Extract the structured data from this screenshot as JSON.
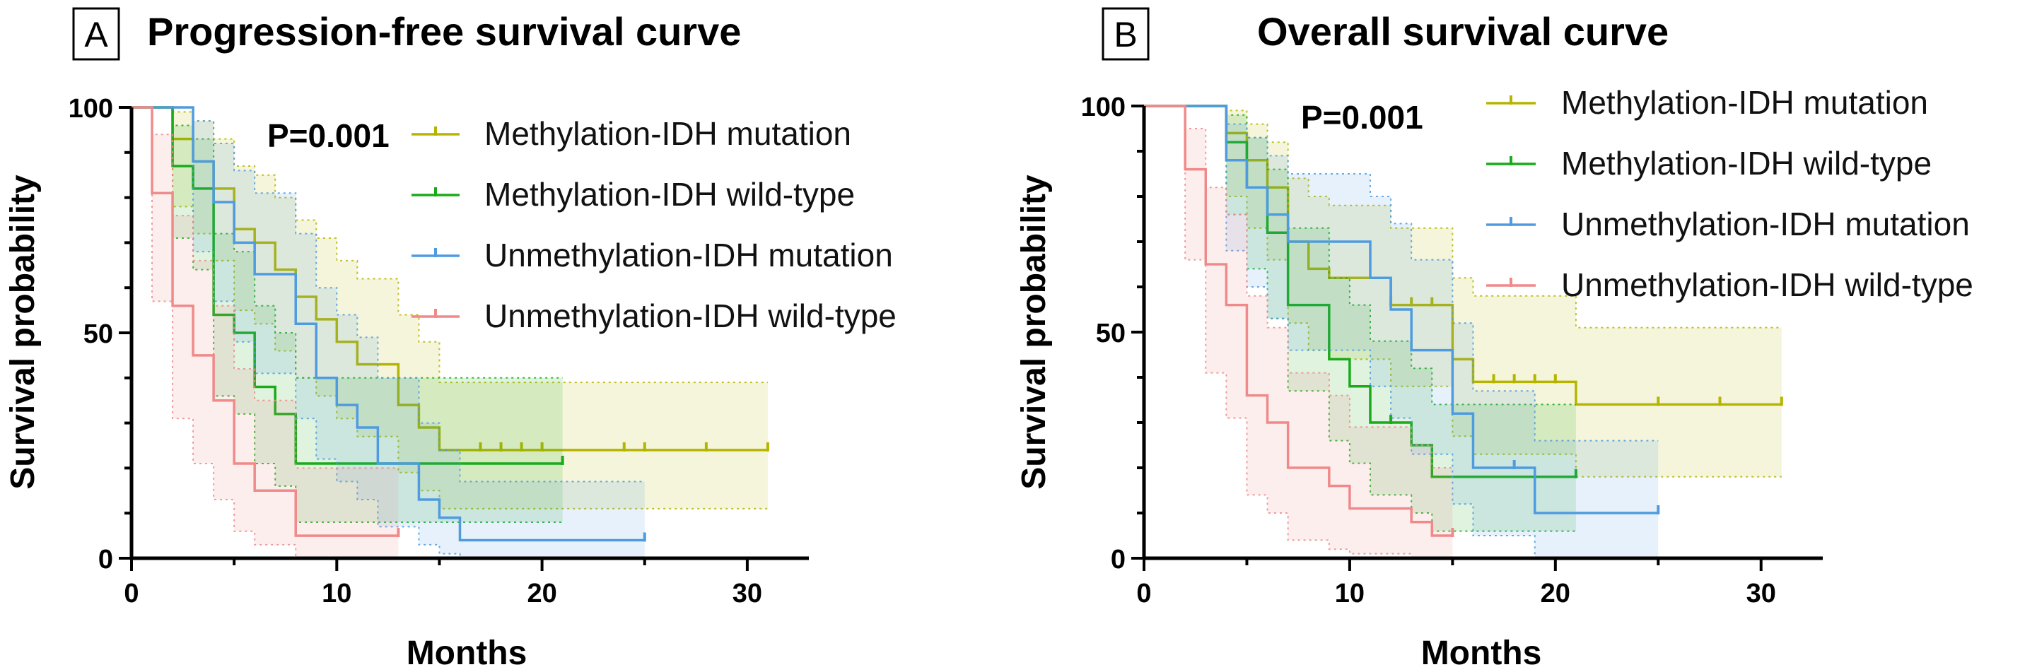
{
  "colors": {
    "Methylation-IDH mutation": "#b5b500",
    "Methylation-IDH wild-type": "#1aaa1a",
    "Unmethylation-IDH mutation": "#4f9be0",
    "Unmethylation-IDH wild-type": "#f08a8a"
  },
  "chart_data": [
    {
      "type": "line",
      "subtype": "kaplan-meier step",
      "panel_label": "A",
      "title": "Progression-free survival curve",
      "annotation": "P=0.001",
      "xlabel": "Months",
      "ylabel": "Survival probability",
      "xlim": [
        0,
        33
      ],
      "ylim": [
        0,
        100
      ],
      "xticks": [
        0,
        10,
        20,
        30
      ],
      "yticks": [
        0,
        50,
        100
      ],
      "grid": false,
      "legend_position": "top-right",
      "series": [
        {
          "name": "Methylation-IDH mutation",
          "x": [
            0,
            2,
            3,
            4,
            5,
            6,
            7,
            8,
            9,
            10,
            11,
            13,
            14,
            15,
            31
          ],
          "y": [
            100,
            93,
            88,
            82,
            73,
            70,
            64,
            58,
            53,
            48,
            43,
            34,
            29,
            24,
            24
          ],
          "lower": [
            100,
            78,
            72,
            66,
            55,
            52,
            46,
            40,
            36,
            31,
            27,
            19,
            15,
            11,
            11
          ],
          "upper": [
            100,
            99,
            97,
            93,
            87,
            85,
            80,
            75,
            71,
            66,
            62,
            54,
            48,
            39,
            39
          ],
          "censor_x": [
            17,
            18,
            19,
            20,
            24,
            25,
            28,
            31
          ]
        },
        {
          "name": "Methylation-IDH wild-type",
          "x": [
            0,
            2,
            3,
            4,
            5,
            6,
            7,
            8,
            21
          ],
          "y": [
            100,
            87,
            82,
            54,
            50,
            38,
            32,
            21,
            21
          ],
          "lower": [
            100,
            71,
            64,
            36,
            32,
            21,
            16,
            8,
            8
          ],
          "upper": [
            100,
            96,
            93,
            72,
            68,
            56,
            50,
            40,
            40
          ],
          "censor_x": [
            21
          ]
        },
        {
          "name": "Unmethylation-IDH mutation",
          "x": [
            0,
            3,
            4,
            5,
            6,
            8,
            9,
            10,
            11,
            12,
            14,
            15,
            16,
            25
          ],
          "y": [
            100,
            88,
            79,
            70,
            63,
            52,
            40,
            34,
            29,
            21,
            13,
            9,
            4,
            4
          ],
          "lower": [
            100,
            68,
            57,
            48,
            41,
            31,
            22,
            17,
            13,
            7,
            3,
            1,
            0,
            0
          ],
          "upper": [
            100,
            97,
            92,
            86,
            81,
            72,
            60,
            54,
            49,
            40,
            30,
            24,
            17,
            17
          ],
          "censor_x": [
            25
          ]
        },
        {
          "name": "Unmethylation-IDH wild-type",
          "x": [
            0,
            1,
            2,
            3,
            4,
            5,
            6,
            8,
            13
          ],
          "y": [
            100,
            81,
            56,
            45,
            35,
            21,
            15,
            5,
            5
          ],
          "lower": [
            100,
            57,
            31,
            21,
            13,
            6,
            3,
            0,
            0
          ],
          "upper": [
            100,
            94,
            76,
            66,
            56,
            42,
            35,
            20,
            20
          ],
          "censor_x": [
            13
          ]
        }
      ]
    },
    {
      "type": "line",
      "subtype": "kaplan-meier step",
      "panel_label": "B",
      "title": "Overall survival curve",
      "annotation": "P=0.001",
      "xlabel": "Months",
      "ylabel": "Survival probability",
      "xlim": [
        0,
        33
      ],
      "ylim": [
        0,
        100
      ],
      "xticks": [
        0,
        10,
        20,
        30
      ],
      "yticks": [
        0,
        50,
        100
      ],
      "grid": false,
      "legend_position": "top-right",
      "series": [
        {
          "name": "Methylation-IDH mutation",
          "x": [
            0,
            4,
            5,
            6,
            7,
            8,
            9,
            12,
            15,
            16,
            21,
            31
          ],
          "y": [
            100,
            94,
            88,
            82,
            70,
            64,
            62,
            56,
            44,
            39,
            34,
            34
          ],
          "lower": [
            100,
            80,
            73,
            66,
            52,
            46,
            44,
            38,
            27,
            23,
            18,
            18
          ],
          "upper": [
            100,
            99,
            96,
            92,
            84,
            80,
            78,
            73,
            62,
            58,
            51,
            51
          ],
          "censor_x": [
            12,
            13,
            14,
            17,
            18,
            19,
            20,
            25,
            28,
            31
          ]
        },
        {
          "name": "Methylation-IDH wild-type",
          "x": [
            0,
            4,
            5,
            6,
            7,
            9,
            10,
            11,
            13,
            14,
            21
          ],
          "y": [
            100,
            92,
            82,
            72,
            56,
            44,
            38,
            30,
            25,
            18,
            18
          ],
          "lower": [
            100,
            76,
            64,
            53,
            37,
            26,
            21,
            14,
            10,
            6,
            6
          ],
          "upper": [
            100,
            98,
            93,
            86,
            73,
            62,
            56,
            48,
            42,
            34,
            34
          ],
          "censor_x": [
            12,
            21
          ]
        },
        {
          "name": "Unmethylation-IDH mutation",
          "x": [
            0,
            4,
            5,
            6,
            7,
            11,
            12,
            13,
            15,
            16,
            19,
            25
          ],
          "y": [
            100,
            88,
            82,
            76,
            70,
            62,
            55,
            46,
            32,
            20,
            10,
            10
          ],
          "lower": [
            100,
            68,
            60,
            53,
            46,
            38,
            31,
            23,
            12,
            5,
            0,
            0
          ],
          "upper": [
            100,
            96,
            93,
            89,
            85,
            80,
            74,
            66,
            52,
            37,
            26,
            26
          ],
          "censor_x": [
            18,
            25
          ]
        },
        {
          "name": "Unmethylation-IDH wild-type",
          "x": [
            0,
            2,
            3,
            4,
            5,
            6,
            7,
            9,
            10,
            13,
            14,
            15
          ],
          "y": [
            100,
            86,
            65,
            56,
            36,
            30,
            20,
            16,
            11,
            8,
            5,
            5
          ],
          "lower": [
            100,
            66,
            41,
            31,
            14,
            10,
            4,
            2,
            1,
            0,
            0,
            0
          ],
          "upper": [
            100,
            95,
            82,
            76,
            58,
            51,
            41,
            36,
            29,
            25,
            20,
            20
          ],
          "censor_x": [
            15
          ]
        }
      ]
    }
  ]
}
